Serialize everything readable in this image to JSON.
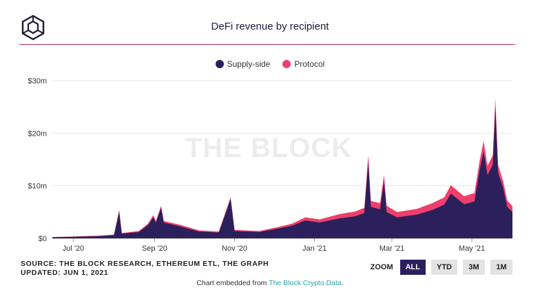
{
  "header": {
    "title": "DeFi revenue by recipient"
  },
  "legend": [
    {
      "label": "Supply-side",
      "color": "#2b1f5c"
    },
    {
      "label": "Protocol",
      "color": "#ee3f6c"
    }
  ],
  "watermark": "THE BLOCK",
  "footer": {
    "source": "SOURCE: THE BLOCK RESEARCH, ETHEREUM ETL, THE GRAPH",
    "updated": "UPDATED: JUN 1, 2021",
    "embed_prefix": "Chart embedded from ",
    "embed_link": "The Block Crypto Data",
    "embed_suffix": "."
  },
  "zoom": {
    "label": "ZOOM",
    "buttons": [
      "ALL",
      "YTD",
      "3M",
      "1M"
    ],
    "active": "ALL"
  },
  "chart_data": {
    "type": "area",
    "stacked": true,
    "title": "DeFi revenue by recipient",
    "x_start": "2020-06-15",
    "x_end": "2021-06-01",
    "x_ticks": [
      {
        "date": "2020-07-01",
        "label": "Jul '20"
      },
      {
        "date": "2020-09-01",
        "label": "Sep '20"
      },
      {
        "date": "2020-11-01",
        "label": "Nov '20"
      },
      {
        "date": "2021-01-01",
        "label": "Jan '21"
      },
      {
        "date": "2021-03-01",
        "label": "Mar '21"
      },
      {
        "date": "2021-05-01",
        "label": "May '21"
      }
    ],
    "y_ticks": [
      {
        "value": 0,
        "label": "$0"
      },
      {
        "value": 10,
        "label": "$10m"
      },
      {
        "value": 20,
        "label": "$20m"
      },
      {
        "value": 30,
        "label": "$30m"
      }
    ],
    "ylim": [
      0,
      30
    ],
    "y_unit": "million USD",
    "legend_position": "top",
    "series": [
      {
        "name": "Supply-side",
        "color": "#2b1f5c",
        "points": [
          [
            "2020-06-15",
            0.2
          ],
          [
            "2020-07-01",
            0.3
          ],
          [
            "2020-07-20",
            0.4
          ],
          [
            "2020-08-01",
            0.6
          ],
          [
            "2020-08-05",
            5.0
          ],
          [
            "2020-08-07",
            0.9
          ],
          [
            "2020-08-20",
            1.2
          ],
          [
            "2020-08-27",
            2.5
          ],
          [
            "2020-08-31",
            4.0
          ],
          [
            "2020-09-02",
            3.0
          ],
          [
            "2020-09-06",
            5.8
          ],
          [
            "2020-09-08",
            3.0
          ],
          [
            "2020-09-20",
            2.3
          ],
          [
            "2020-10-05",
            1.3
          ],
          [
            "2020-10-20",
            1.1
          ],
          [
            "2020-10-29",
            7.5
          ],
          [
            "2020-11-01",
            1.4
          ],
          [
            "2020-11-20",
            1.2
          ],
          [
            "2020-12-05",
            1.9
          ],
          [
            "2020-12-15",
            2.4
          ],
          [
            "2020-12-25",
            3.4
          ],
          [
            "2021-01-05",
            3.0
          ],
          [
            "2021-01-20",
            3.8
          ],
          [
            "2021-02-01",
            4.2
          ],
          [
            "2021-02-08",
            4.8
          ],
          [
            "2021-02-11",
            14.5
          ],
          [
            "2021-02-13",
            6.0
          ],
          [
            "2021-02-20",
            5.5
          ],
          [
            "2021-02-23",
            10.8
          ],
          [
            "2021-02-25",
            5.0
          ],
          [
            "2021-03-05",
            4.0
          ],
          [
            "2021-03-20",
            4.5
          ],
          [
            "2021-04-01",
            5.4
          ],
          [
            "2021-04-10",
            6.4
          ],
          [
            "2021-04-15",
            8.5
          ],
          [
            "2021-04-25",
            6.5
          ],
          [
            "2021-05-03",
            7.0
          ],
          [
            "2021-05-07",
            13.0
          ],
          [
            "2021-05-10",
            16.5
          ],
          [
            "2021-05-13",
            12.0
          ],
          [
            "2021-05-17",
            14.0
          ],
          [
            "2021-05-19",
            25.0
          ],
          [
            "2021-05-21",
            12.5
          ],
          [
            "2021-05-25",
            9.5
          ],
          [
            "2021-05-28",
            6.0
          ],
          [
            "2021-06-01",
            5.0
          ]
        ]
      },
      {
        "name": "Protocol",
        "color": "#ee3f6c",
        "points": [
          [
            "2020-06-15",
            0.05
          ],
          [
            "2020-07-01",
            0.05
          ],
          [
            "2020-07-20",
            0.1
          ],
          [
            "2020-08-01",
            0.1
          ],
          [
            "2020-08-05",
            0.4
          ],
          [
            "2020-08-07",
            0.1
          ],
          [
            "2020-08-20",
            0.2
          ],
          [
            "2020-08-27",
            0.3
          ],
          [
            "2020-08-31",
            0.4
          ],
          [
            "2020-09-02",
            0.3
          ],
          [
            "2020-09-06",
            0.4
          ],
          [
            "2020-09-08",
            0.3
          ],
          [
            "2020-09-20",
            0.3
          ],
          [
            "2020-10-05",
            0.2
          ],
          [
            "2020-10-20",
            0.2
          ],
          [
            "2020-10-29",
            0.3
          ],
          [
            "2020-11-01",
            0.2
          ],
          [
            "2020-11-20",
            0.2
          ],
          [
            "2020-12-05",
            0.3
          ],
          [
            "2020-12-15",
            0.4
          ],
          [
            "2020-12-25",
            0.6
          ],
          [
            "2021-01-05",
            0.6
          ],
          [
            "2021-01-20",
            0.8
          ],
          [
            "2021-02-01",
            0.9
          ],
          [
            "2021-02-08",
            1.0
          ],
          [
            "2021-02-11",
            1.3
          ],
          [
            "2021-02-13",
            1.1
          ],
          [
            "2021-02-20",
            1.2
          ],
          [
            "2021-02-23",
            1.3
          ],
          [
            "2021-02-25",
            1.2
          ],
          [
            "2021-03-05",
            1.0
          ],
          [
            "2021-03-20",
            1.1
          ],
          [
            "2021-04-01",
            1.3
          ],
          [
            "2021-04-10",
            1.4
          ],
          [
            "2021-04-15",
            1.6
          ],
          [
            "2021-04-25",
            1.5
          ],
          [
            "2021-05-03",
            1.6
          ],
          [
            "2021-05-07",
            1.8
          ],
          [
            "2021-05-10",
            2.0
          ],
          [
            "2021-05-13",
            1.8
          ],
          [
            "2021-05-17",
            1.8
          ],
          [
            "2021-05-19",
            1.6
          ],
          [
            "2021-05-21",
            1.5
          ],
          [
            "2021-05-25",
            1.3
          ],
          [
            "2021-05-28",
            1.2
          ],
          [
            "2021-06-01",
            1.1
          ]
        ]
      }
    ]
  }
}
